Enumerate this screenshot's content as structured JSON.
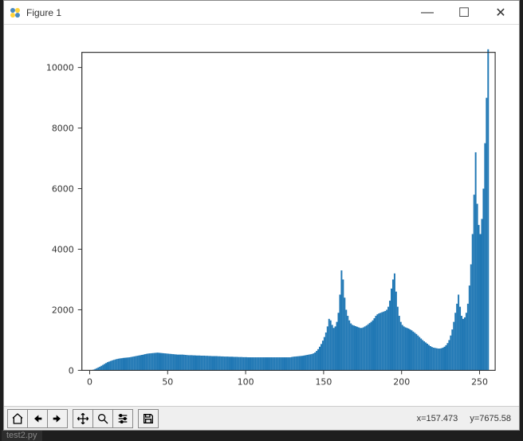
{
  "window": {
    "title": "Figure 1",
    "minimize_glyph": "—",
    "maximize_glyph": "☐",
    "close_glyph": "✕"
  },
  "toolbar": {
    "home": "home-icon",
    "back": "arrow-left-icon",
    "forward": "arrow-right-icon",
    "pan": "move-icon",
    "zoom": "zoom-icon",
    "configure": "sliders-icon",
    "save": "save-icon"
  },
  "status": {
    "x_label": "x=157.473",
    "y_label": "y=7675.58"
  },
  "chart": {
    "type": "histogram",
    "background_color": "#ffffff",
    "bar_color": "#1f77b4",
    "axis_color": "#333333",
    "tick_fontsize": 11,
    "xlim": [
      -5,
      260
    ],
    "ylim": [
      0,
      10500
    ],
    "xticks": [
      0,
      50,
      100,
      150,
      200,
      250
    ],
    "yticks": [
      0,
      2000,
      4000,
      6000,
      8000,
      10000
    ],
    "xtick_labels": [
      "0",
      "50",
      "100",
      "150",
      "200",
      "250"
    ],
    "ytick_labels": [
      "0",
      "2000",
      "4000",
      "6000",
      "8000",
      "10000"
    ],
    "bins": [
      0,
      10,
      25,
      45,
      70,
      95,
      120,
      150,
      180,
      210,
      240,
      270,
      290,
      310,
      330,
      345,
      360,
      375,
      385,
      395,
      400,
      410,
      415,
      420,
      425,
      430,
      440,
      450,
      460,
      470,
      480,
      490,
      500,
      510,
      520,
      535,
      545,
      555,
      560,
      565,
      570,
      575,
      580,
      585,
      580,
      575,
      570,
      565,
      560,
      555,
      550,
      545,
      540,
      535,
      530,
      525,
      520,
      520,
      520,
      520,
      515,
      510,
      505,
      500,
      500,
      500,
      495,
      495,
      490,
      490,
      490,
      485,
      485,
      485,
      480,
      480,
      475,
      475,
      470,
      470,
      470,
      470,
      465,
      465,
      460,
      460,
      455,
      455,
      455,
      450,
      450,
      450,
      445,
      445,
      445,
      440,
      440,
      440,
      435,
      435,
      435,
      430,
      430,
      430,
      430,
      430,
      430,
      430,
      430,
      430,
      430,
      430,
      430,
      430,
      430,
      430,
      430,
      430,
      430,
      430,
      430,
      430,
      430,
      430,
      430,
      430,
      430,
      430,
      430,
      440,
      450,
      455,
      460,
      465,
      470,
      475,
      480,
      490,
      500,
      510,
      520,
      530,
      540,
      560,
      590,
      640,
      700,
      780,
      870,
      980,
      1100,
      1250,
      1450,
      1700,
      1650,
      1500,
      1400,
      1450,
      1600,
      1900,
      2500,
      3300,
      3000,
      2400,
      2000,
      1800,
      1650,
      1550,
      1500,
      1480,
      1460,
      1440,
      1420,
      1400,
      1400,
      1420,
      1450,
      1480,
      1520,
      1560,
      1600,
      1650,
      1720,
      1800,
      1850,
      1880,
      1900,
      1920,
      1940,
      1960,
      2000,
      2100,
      2300,
      2700,
      3000,
      3200,
      2600,
      2100,
      1800,
      1600,
      1500,
      1450,
      1420,
      1400,
      1380,
      1350,
      1320,
      1280,
      1240,
      1200,
      1150,
      1100,
      1050,
      1000,
      960,
      920,
      880,
      840,
      800,
      770,
      750,
      740,
      730,
      720,
      720,
      730,
      750,
      780,
      830,
      900,
      1000,
      1150,
      1350,
      1600,
      1900,
      2200,
      2500,
      2100,
      1800,
      1700,
      1750,
      1900,
      2200,
      2800,
      3500,
      4500,
      5800,
      7200,
      5500,
      4800,
      4500,
      5000,
      6000,
      7500,
      9000,
      10600
    ]
  },
  "editor_tab": "test2.py"
}
